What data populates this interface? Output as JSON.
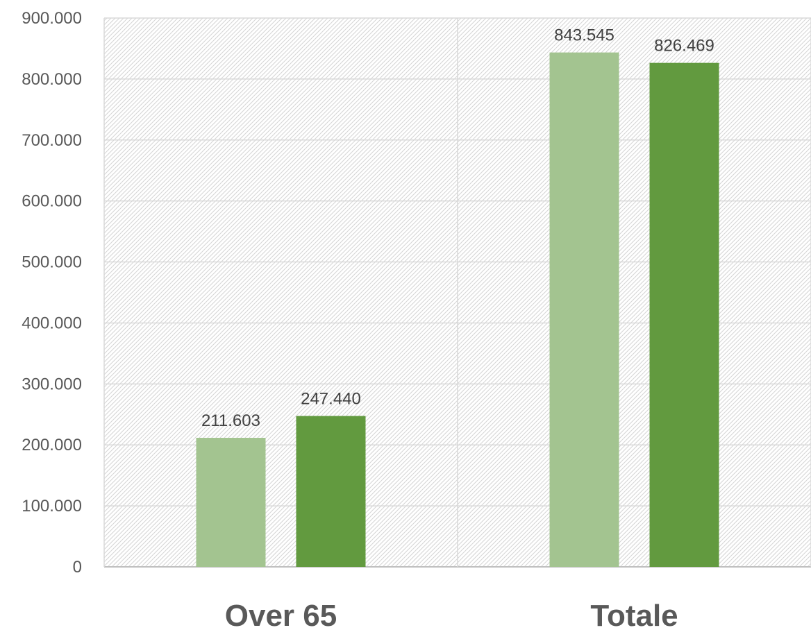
{
  "chart_data": {
    "type": "bar",
    "title": "",
    "xlabel": "",
    "ylabel": "",
    "categories": [
      "Over 65",
      "Totale"
    ],
    "series": [
      {
        "values": [
          211603,
          843545
        ],
        "labels": [
          "211.603",
          "843.545"
        ],
        "color": "#a3c490"
      },
      {
        "values": [
          247440,
          826469
        ],
        "labels": [
          "247.440",
          "826.469"
        ],
        "color": "#629a3f"
      }
    ],
    "ylim": [
      0,
      900000
    ],
    "yticks": [
      0,
      100000,
      200000,
      300000,
      400000,
      500000,
      600000,
      700000,
      800000,
      900000
    ],
    "ytick_labels": [
      "0",
      "100.000",
      "200.000",
      "300.000",
      "400.000",
      "500.000",
      "600.000",
      "700.000",
      "800.000",
      "900.000"
    ],
    "grid": true,
    "legend": "none",
    "background": "hatched"
  }
}
